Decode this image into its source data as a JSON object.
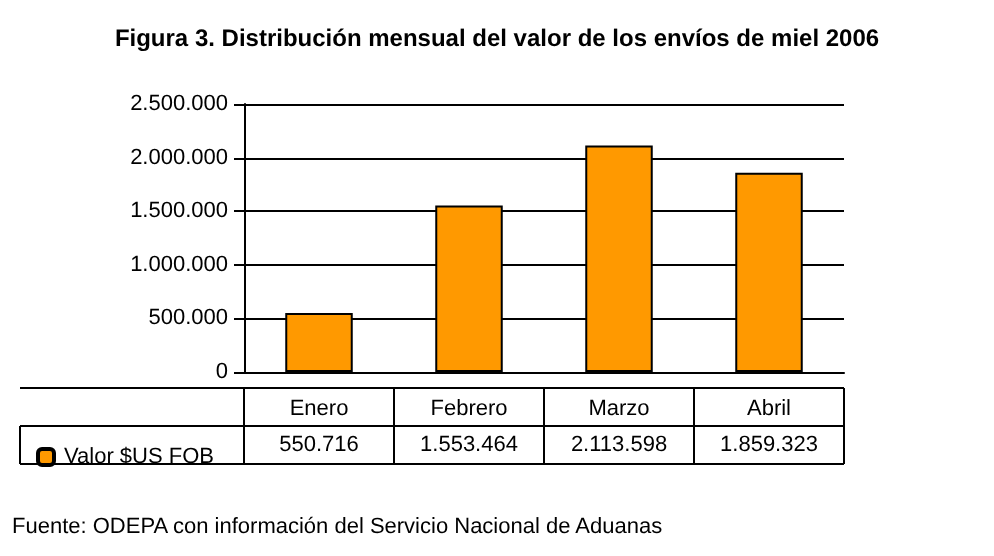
{
  "chart_data": {
    "type": "bar",
    "title": "Figura 3. Distribución mensual del valor de los envíos de miel 2006",
    "categories": [
      "Enero",
      "Febrero",
      "Marzo",
      "Abril"
    ],
    "series": [
      {
        "name": "Valor $US FOB",
        "color": "#ff9900",
        "values": [
          550716,
          1553464,
          2113598,
          1859323
        ],
        "value_labels": [
          "550.716",
          "1.553.464",
          "2.113.598",
          "1.859.323"
        ]
      }
    ],
    "ylim": [
      0,
      2500000
    ],
    "yticks": [
      0,
      {
        "value": 500000,
        "label": "500.000"
      },
      {
        "value": 1000000,
        "label": "1.000.000"
      },
      {
        "value": 1500000,
        "label": "1.500.000"
      },
      {
        "value": 2000000,
        "label": "2.000.000"
      },
      {
        "value": 2500000,
        "label": "2.500.000"
      }
    ],
    "grid": "y",
    "legend": "bottom left",
    "annotations": [
      "Fuente: ODEPA con información del Servicio Nacional de Aduanas"
    ]
  }
}
